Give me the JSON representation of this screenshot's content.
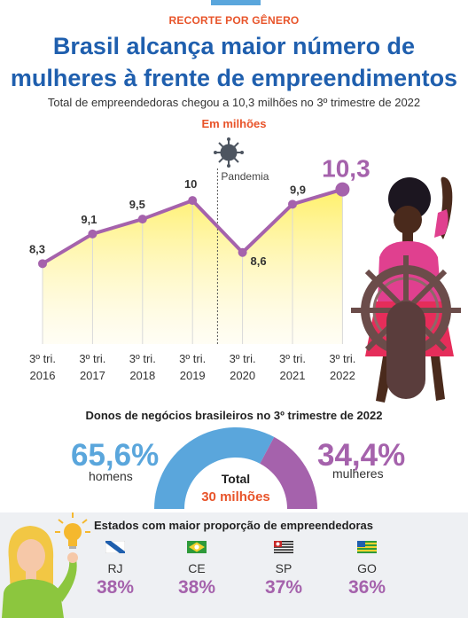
{
  "header": {
    "kicker": "RECORTE POR GÊNERO",
    "title_line1": "Brasil alcança maior número de",
    "title_line2": "mulheres à frente de empreendimentos",
    "subtitle": "Total de empreendedoras chegou a 10,3 milhões no 3º trimestre de 2022",
    "unit": "Em milhões"
  },
  "chart_data": [
    {
      "type": "area",
      "categories": [
        "3º tri. 2016",
        "3º tri. 2017",
        "3º tri. 2018",
        "3º tri. 2019",
        "3º tri. 2020",
        "3º tri. 2021",
        "3º tri. 2022"
      ],
      "tick_line1": [
        "3º tri.",
        "3º tri.",
        "3º tri.",
        "3º tri.",
        "3º tri.",
        "3º tri.",
        "3º tri."
      ],
      "tick_line2": [
        "2016",
        "2017",
        "2018",
        "2019",
        "2020",
        "2021",
        "2022"
      ],
      "values": [
        8.3,
        9.1,
        9.5,
        10,
        8.6,
        9.9,
        10.3
      ],
      "value_labels": [
        "8,3",
        "9,1",
        "9,5",
        "10",
        "8,6",
        "9,9",
        "10,3"
      ],
      "ylabel": "Em milhões",
      "ylim": [
        7.4,
        10.6
      ],
      "grid": false,
      "annotation": {
        "label": "Pandemia",
        "after_index": 3
      }
    },
    {
      "type": "pie",
      "title": "Donos de negócios brasileiros no 3º trimestre de 2022",
      "categories": [
        "homens",
        "mulheres"
      ],
      "values": [
        65.6,
        34.4
      ],
      "value_labels": [
        "65,6%",
        "34,4%"
      ],
      "center_label": "Total",
      "center_value": "30 milhões",
      "colors": [
        "#5aa6dc",
        "#a562ac"
      ]
    }
  ],
  "states": {
    "title": "Estados com maior proporção de empreendedoras",
    "items": [
      {
        "code": "RJ",
        "pct": "38%"
      },
      {
        "code": "CE",
        "pct": "38%"
      },
      {
        "code": "SP",
        "pct": "37%"
      },
      {
        "code": "GO",
        "pct": "36%"
      }
    ]
  },
  "colors": {
    "accent_purple": "#a562ac",
    "accent_blue": "#5aa6dc",
    "title_blue": "#1f5fae",
    "highlight_orange": "#e8542a",
    "area_yellow": "#fff06a"
  },
  "icons": [
    "virus-icon",
    "businesswoman-illustration",
    "ship-wheel-icon",
    "woman-illustration",
    "lightbulb-icon",
    "rj-flag-icon",
    "ce-flag-icon",
    "sp-flag-icon",
    "go-flag-icon"
  ]
}
